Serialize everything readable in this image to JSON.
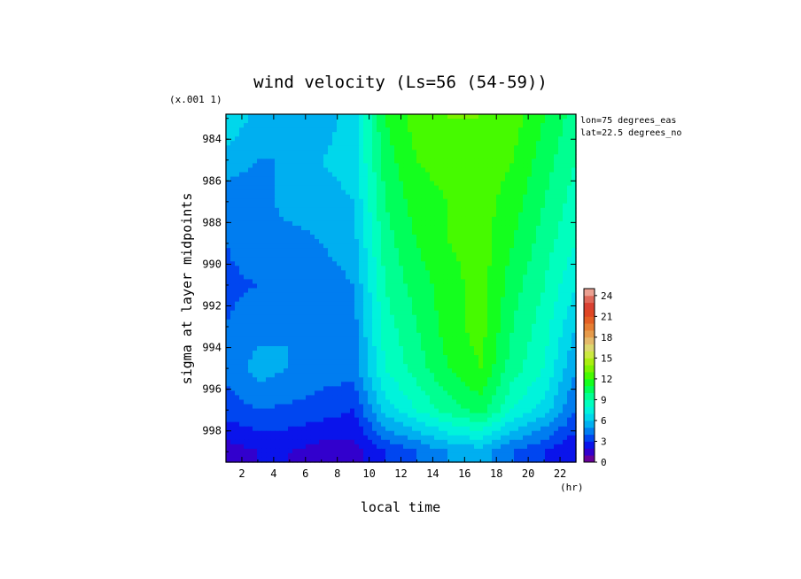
{
  "chart_data": {
    "type": "heatmap",
    "title": "wind velocity (Ls=56 (54-59))",
    "xlabel": "local time",
    "x_unit": "(hr)",
    "ylabel": "sigma at layer midpoints",
    "y_scale_note": "(x.001 1)",
    "annotations": [
      "lon=75 degrees_eas",
      "lat=22.5 degrees_no"
    ],
    "xlim": [
      1,
      23
    ],
    "ylim": [
      999.5,
      982.8
    ],
    "x_ticks": [
      2,
      4,
      6,
      8,
      10,
      12,
      14,
      16,
      18,
      20,
      22
    ],
    "x_tick_labels": [
      "2",
      "4",
      "6",
      "8",
      "10",
      "12",
      "14",
      "16",
      "18",
      "20",
      "22"
    ],
    "y_ticks": [
      984,
      986,
      988,
      990,
      992,
      994,
      996,
      998
    ],
    "y_tick_labels": [
      "984",
      "986",
      "988",
      "990",
      "992",
      "994",
      "996",
      "998"
    ],
    "x": [
      1,
      3,
      5,
      7,
      9,
      11,
      13,
      15,
      17,
      19,
      21,
      23
    ],
    "y": [
      983,
      985,
      987,
      989,
      991,
      993,
      995,
      997,
      999
    ],
    "z": [
      [
        7.0,
        5.5,
        5.0,
        5.5,
        6.5,
        11.0,
        12.5,
        13.0,
        13.0,
        12.5,
        11.0,
        9.5
      ],
      [
        5.5,
        5.0,
        5.0,
        6.0,
        6.5,
        10.5,
        12.0,
        12.5,
        12.8,
        12.0,
        10.5,
        9.0
      ],
      [
        4.5,
        4.5,
        5.5,
        5.5,
        6.0,
        10.0,
        11.5,
        12.0,
        12.5,
        11.5,
        10.0,
        8.5
      ],
      [
        4.0,
        4.5,
        4.5,
        5.0,
        5.5,
        9.5,
        11.0,
        12.0,
        12.5,
        11.0,
        9.5,
        8.0
      ],
      [
        3.8,
        4.0,
        4.5,
        4.5,
        5.0,
        9.0,
        10.5,
        11.5,
        12.5,
        10.5,
        9.0,
        7.0
      ],
      [
        4.0,
        4.5,
        5.0,
        4.5,
        4.5,
        8.5,
        10.0,
        11.5,
        12.5,
        10.0,
        8.5,
        6.0
      ],
      [
        4.2,
        5.5,
        5.0,
        4.5,
        4.5,
        8.0,
        9.5,
        11.0,
        12.0,
        9.5,
        8.0,
        5.0
      ],
      [
        3.5,
        4.0,
        3.8,
        3.5,
        3.0,
        6.5,
        8.0,
        9.5,
        10.5,
        8.0,
        6.5,
        4.0
      ],
      [
        1.5,
        2.0,
        2.0,
        1.5,
        1.5,
        3.0,
        4.0,
        5.0,
        5.5,
        4.0,
        3.0,
        2.0
      ]
    ],
    "colorbar": {
      "ticks": [
        0,
        3,
        6,
        9,
        12,
        15,
        18,
        21,
        24
      ],
      "tick_labels": [
        "0",
        "3",
        "6",
        "9",
        "12",
        "15",
        "18",
        "21",
        "24"
      ],
      "min": 0,
      "max": 25,
      "step": 1
    },
    "grid": false,
    "legend": "right colorbar"
  }
}
